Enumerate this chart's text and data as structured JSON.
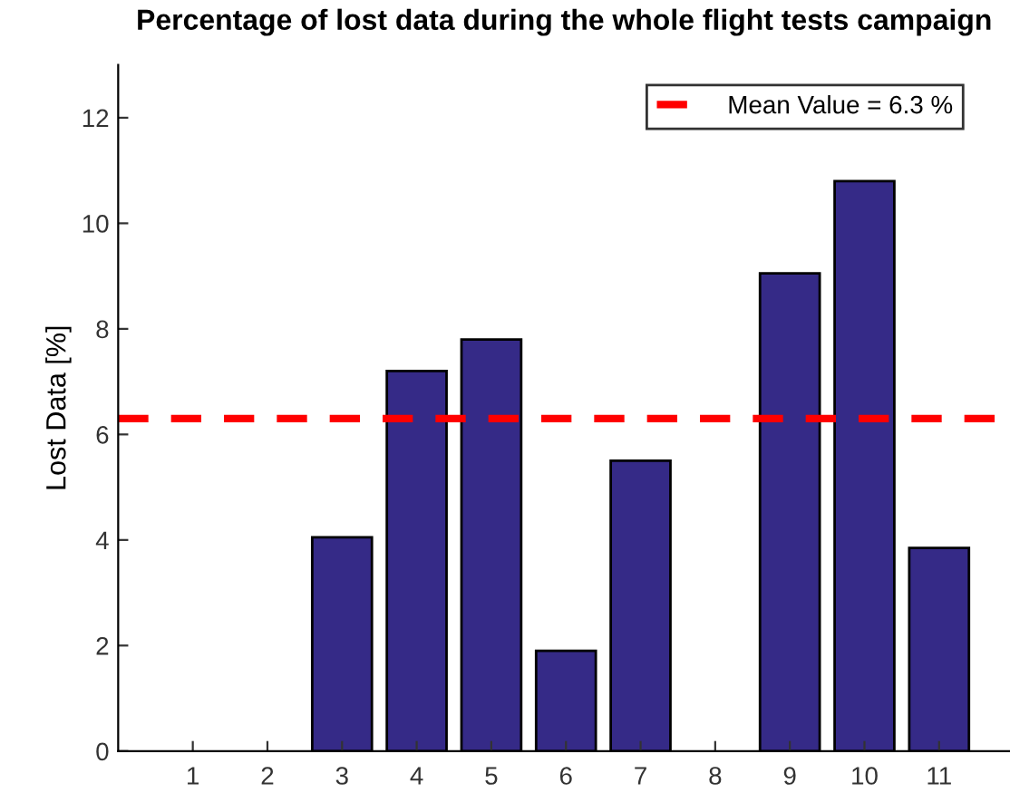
{
  "chart_data": {
    "type": "bar",
    "title": "Percentage of lost data during the whole flight tests campaign",
    "ylabel": "Lost Data [%]",
    "categories": [
      "1",
      "2",
      "3",
      "4",
      "5",
      "6",
      "7",
      "8",
      "9",
      "10",
      "11"
    ],
    "values": [
      0,
      0,
      4.05,
      7.2,
      7.8,
      1.9,
      5.5,
      0,
      9.05,
      10.8,
      3.85
    ],
    "color": "#352a87",
    "ylim": [
      0,
      13
    ],
    "yticks": [
      0,
      2,
      4,
      6,
      8,
      10,
      12
    ],
    "grid": false,
    "legend": "top right",
    "ref_lines": [
      {
        "axis": "y",
        "value": 6.3,
        "label": "Mean Value = 6.3 %",
        "color": "#ff0000",
        "line_style": "dashed"
      }
    ]
  }
}
